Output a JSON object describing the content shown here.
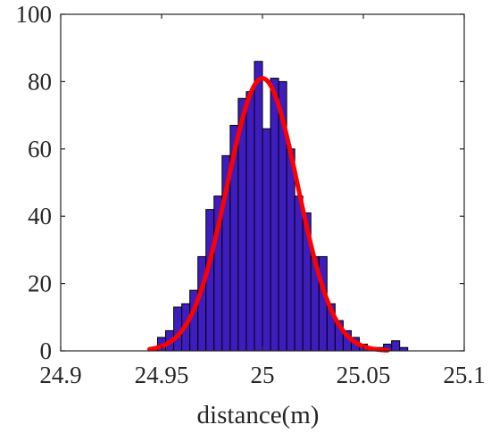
{
  "chart_data": {
    "type": "bar",
    "subtype": "histogram-with-gaussian-fit",
    "xlabel": "distance(m)",
    "ylabel": "",
    "title": "",
    "xlim": [
      24.9,
      25.1
    ],
    "ylim": [
      0,
      100
    ],
    "xticks": [
      "24.9",
      "24.95",
      "25",
      "25.05",
      "25.1"
    ],
    "yticks": [
      "0",
      "20",
      "40",
      "60",
      "80",
      "100"
    ],
    "grid": false,
    "bin_width": 0.004,
    "bins": [
      {
        "x0": 24.944,
        "count": 1
      },
      {
        "x0": 24.948,
        "count": 4
      },
      {
        "x0": 24.952,
        "count": 6
      },
      {
        "x0": 24.956,
        "count": 13
      },
      {
        "x0": 24.96,
        "count": 14
      },
      {
        "x0": 24.964,
        "count": 18
      },
      {
        "x0": 24.968,
        "count": 28
      },
      {
        "x0": 24.972,
        "count": 42
      },
      {
        "x0": 24.976,
        "count": 46
      },
      {
        "x0": 24.98,
        "count": 58
      },
      {
        "x0": 24.984,
        "count": 67
      },
      {
        "x0": 24.988,
        "count": 75
      },
      {
        "x0": 24.992,
        "count": 77
      },
      {
        "x0": 24.996,
        "count": 86
      },
      {
        "x0": 25.0,
        "count": 66
      },
      {
        "x0": 25.004,
        "count": 81
      },
      {
        "x0": 25.008,
        "count": 80
      },
      {
        "x0": 25.012,
        "count": 60
      },
      {
        "x0": 25.016,
        "count": 46
      },
      {
        "x0": 25.02,
        "count": 41
      },
      {
        "x0": 25.024,
        "count": 28
      },
      {
        "x0": 25.028,
        "count": 28
      },
      {
        "x0": 25.032,
        "count": 14
      },
      {
        "x0": 25.036,
        "count": 9
      },
      {
        "x0": 25.04,
        "count": 6
      },
      {
        "x0": 25.044,
        "count": 4
      },
      {
        "x0": 25.048,
        "count": 2
      },
      {
        "x0": 25.052,
        "count": 1
      },
      {
        "x0": 25.056,
        "count": 1
      },
      {
        "x0": 25.06,
        "count": 2
      },
      {
        "x0": 25.064,
        "count": 3
      },
      {
        "x0": 25.068,
        "count": 1
      }
    ],
    "fit": {
      "type": "gaussian",
      "mean": 25.0,
      "std": 0.0175,
      "peak": 81,
      "x_range": [
        24.944,
        25.062
      ],
      "color": "#ff0000"
    },
    "bar_color": "#3d1dbd"
  }
}
